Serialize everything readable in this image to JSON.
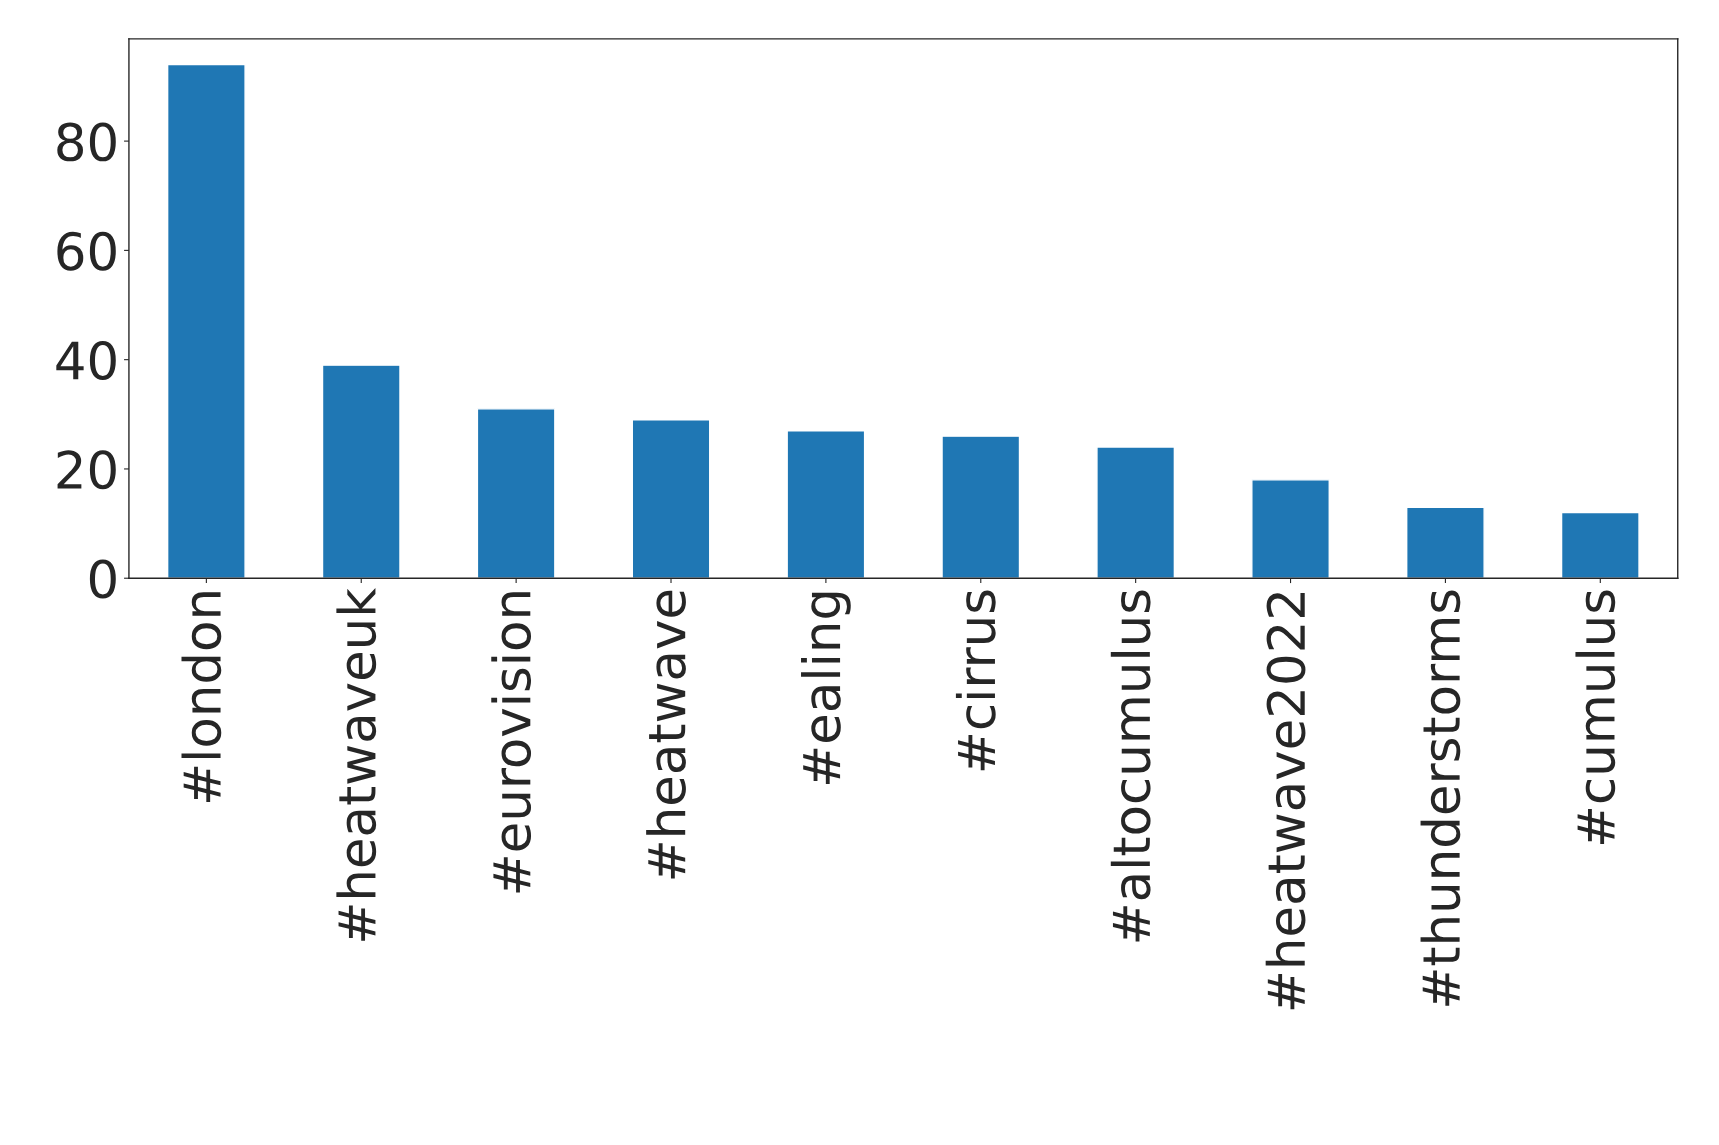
{
  "chart_data": {
    "type": "bar",
    "categories": [
      "#london",
      "#heatwaveuk",
      "#eurovision",
      "#heatwave",
      "#ealing",
      "#cirrus",
      "#altocumulus",
      "#heatwave2022",
      "#thunderstorms",
      "#cumulus"
    ],
    "values": [
      94,
      39,
      31,
      29,
      27,
      26,
      24,
      18,
      13,
      12
    ],
    "color": "#1f77b4",
    "ylim": [
      0,
      98.7
    ],
    "yticks": [
      0,
      20,
      40,
      60,
      80
    ],
    "grid": false,
    "legend": false
  }
}
